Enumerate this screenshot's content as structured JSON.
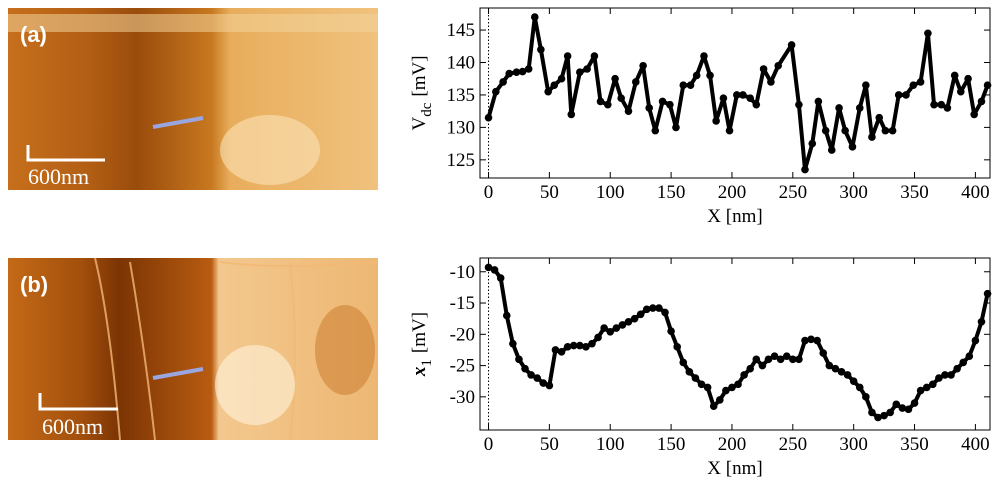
{
  "panels": [
    {
      "label": "(a)",
      "scale_bar": "600nm"
    },
    {
      "label": "(b)",
      "scale_bar": "600nm"
    }
  ],
  "chart_data": [
    {
      "type": "line",
      "x": [
        0,
        6,
        12,
        17,
        23,
        28,
        33,
        38,
        43,
        49,
        54,
        60,
        65,
        68,
        75,
        81,
        87,
        92,
        98,
        104,
        109,
        115,
        121,
        127,
        132,
        137,
        143,
        149,
        154,
        160,
        166,
        171,
        177,
        182,
        187,
        193,
        198,
        204,
        209,
        215,
        220,
        226,
        232,
        238,
        249,
        255,
        260,
        266,
        271,
        277,
        282,
        288,
        293,
        299,
        305,
        310,
        315,
        321,
        326,
        332,
        337,
        343,
        349,
        355,
        361,
        366,
        372,
        377,
        383,
        388,
        394,
        399,
        405,
        410
      ],
      "values": [
        131.5,
        135.5,
        137,
        138.3,
        138.5,
        138.6,
        139,
        147,
        142,
        135.5,
        136.5,
        137.5,
        141,
        132,
        138.5,
        139,
        141,
        134,
        133.5,
        137.5,
        134.5,
        132.5,
        137,
        139.5,
        133,
        129.5,
        134,
        133.5,
        130,
        136.5,
        136.5,
        138,
        141,
        138,
        131,
        134.5,
        129.5,
        135,
        135,
        134.5,
        133.5,
        139,
        137,
        139.5,
        142.7,
        133.5,
        123.5,
        127.5,
        134,
        129.5,
        126.5,
        133,
        129.5,
        127,
        133,
        136.5,
        128.5,
        131.5,
        129.5,
        129.5,
        135,
        135,
        136.5,
        137,
        144.5,
        133.5,
        133.5,
        133,
        138,
        135.5,
        137.5,
        132,
        134,
        136.5
      ],
      "color": "#000000",
      "xlabel": "X [nm]",
      "ylabel": {
        "text": "V",
        "sub": "dc",
        "unit": "[mV]"
      },
      "xlim": [
        -7,
        412
      ],
      "ylim": [
        122.2,
        148.4
      ],
      "xticks": [
        0,
        50,
        100,
        150,
        200,
        250,
        300,
        350,
        400
      ],
      "yticks": [
        125,
        130,
        135,
        140,
        145
      ],
      "grid": false
    },
    {
      "type": "line",
      "x": [
        0,
        5,
        10,
        15,
        20,
        25,
        30,
        35,
        40,
        45,
        50,
        55,
        60,
        65,
        70,
        75,
        80,
        85,
        90,
        95,
        100,
        105,
        110,
        115,
        120,
        125,
        130,
        135,
        140,
        145,
        150,
        155,
        160,
        165,
        170,
        175,
        180,
        185,
        190,
        195,
        200,
        205,
        210,
        215,
        220,
        225,
        230,
        235,
        240,
        245,
        250,
        255,
        260,
        265,
        270,
        275,
        280,
        285,
        290,
        295,
        300,
        305,
        310,
        315,
        320,
        325,
        330,
        335,
        340,
        345,
        350,
        355,
        360,
        365,
        370,
        375,
        380,
        385,
        390,
        395,
        400,
        405,
        410
      ],
      "values": [
        -9.3,
        -9.7,
        -11,
        -17,
        -21.5,
        -24,
        -25.5,
        -26.5,
        -27,
        -27.8,
        -28.2,
        -22.5,
        -22.8,
        -22,
        -21.8,
        -21.8,
        -22,
        -21.5,
        -20.5,
        -19,
        -19.6,
        -19,
        -18.5,
        -18,
        -17.5,
        -16.8,
        -16,
        -15.8,
        -15.8,
        -16.5,
        -19.5,
        -22,
        -24.5,
        -26,
        -27,
        -28,
        -28.5,
        -31.5,
        -30.5,
        -29,
        -28.5,
        -28,
        -26.5,
        -25.5,
        -24,
        -25,
        -24,
        -23.5,
        -24,
        -23.5,
        -24,
        -24,
        -21,
        -20.8,
        -21,
        -23,
        -25,
        -25.5,
        -26,
        -26.5,
        -27.5,
        -28.5,
        -30,
        -32.5,
        -33.3,
        -33,
        -32.5,
        -31.2,
        -31.8,
        -32,
        -31,
        -29,
        -28.5,
        -28,
        -27,
        -26.5,
        -26.5,
        -25.5,
        -24.5,
        -23.5,
        -21,
        -18,
        -13.5
      ],
      "color": "#000000",
      "xlabel": "X [nm]",
      "ylabel": {
        "text": "x",
        "sub": "1",
        "unit": "[mV]"
      },
      "xlim": [
        -7,
        412
      ],
      "ylim": [
        -35.3,
        -7.8
      ],
      "xticks": [
        0,
        50,
        100,
        150,
        200,
        250,
        300,
        350,
        400
      ],
      "yticks": [
        -10,
        -15,
        -20,
        -25,
        -30
      ],
      "grid": false
    }
  ]
}
